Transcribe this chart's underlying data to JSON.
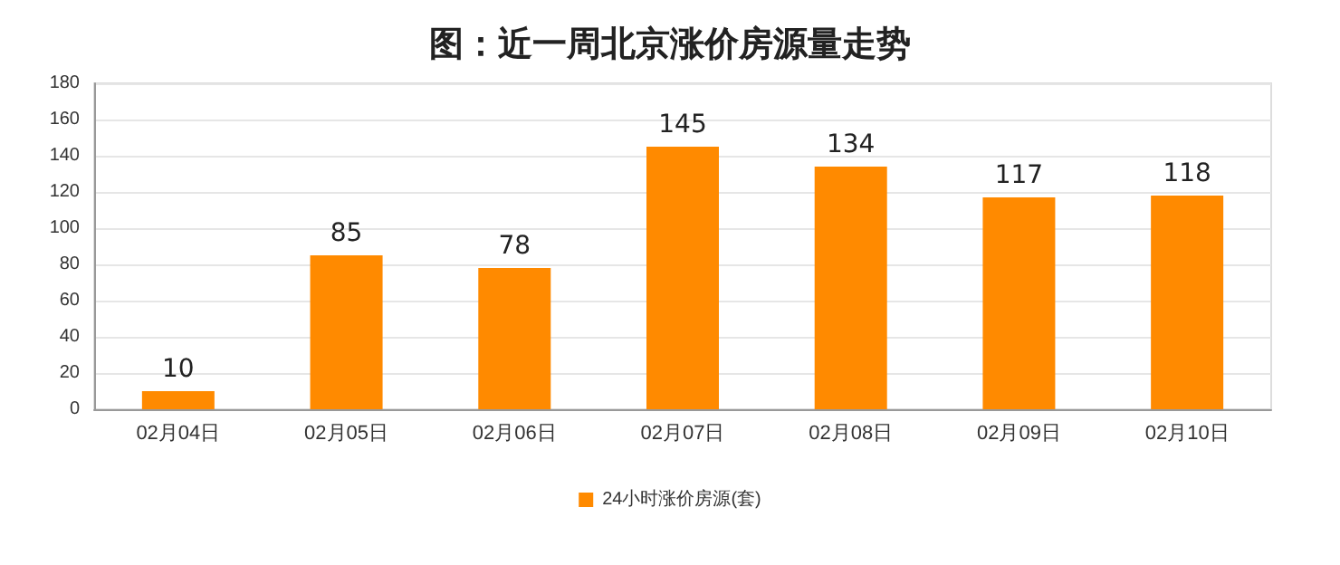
{
  "chart_data": {
    "type": "bar",
    "title": "图：近一周北京涨价房源量走势",
    "categories": [
      "02月04日",
      "02月05日",
      "02月06日",
      "02月07日",
      "02月08日",
      "02月09日",
      "02月10日"
    ],
    "series": [
      {
        "name": "24小时涨价房源(套)",
        "color": "#ff8a00",
        "values": [
          10,
          85,
          78,
          145,
          134,
          117,
          118
        ]
      }
    ],
    "ylim": [
      0,
      180
    ],
    "yticks": [
      0,
      20,
      40,
      60,
      80,
      100,
      120,
      140,
      160,
      180
    ],
    "grid": "y",
    "legend": "bottom",
    "data_labels": true
  }
}
